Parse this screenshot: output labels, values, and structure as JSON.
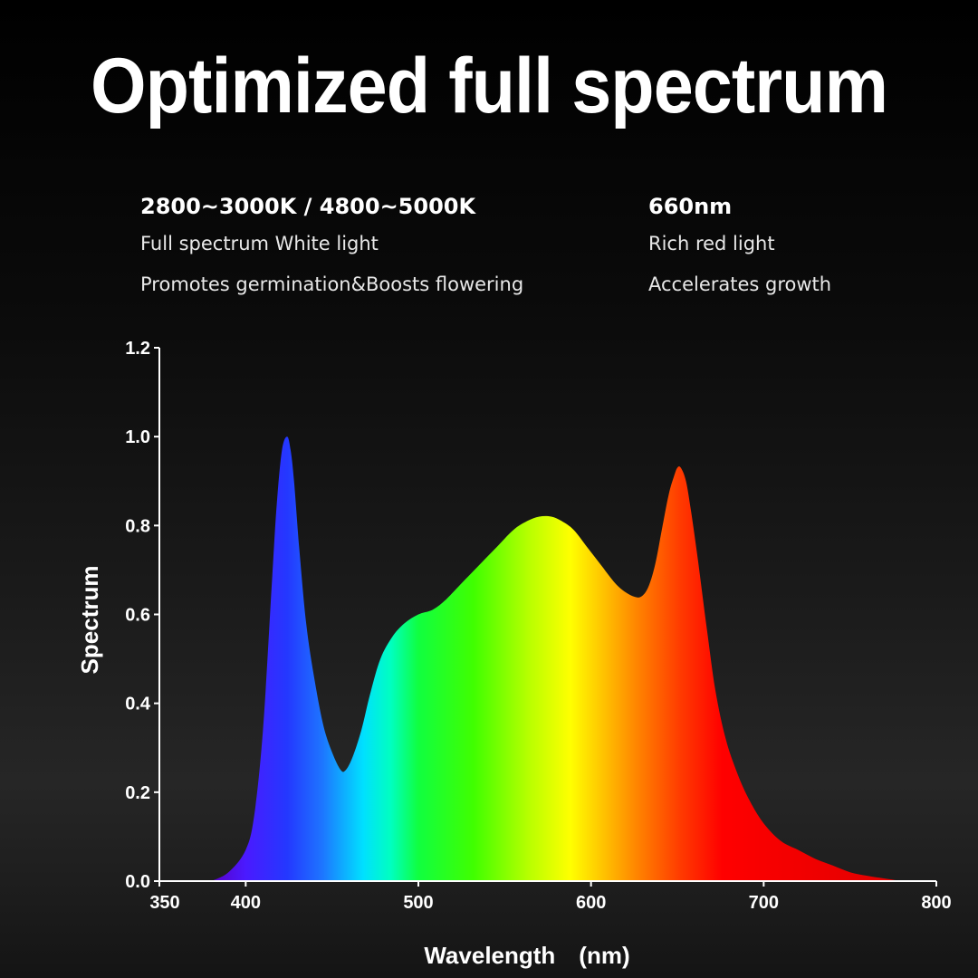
{
  "headline": "Optimized full spectrum",
  "info": {
    "left": {
      "title": "2800~3000K / 4800~5000K",
      "line1": "Full spectrum White light",
      "line2": "Promotes germination&Boosts flowering"
    },
    "right": {
      "title": "660nm",
      "line1": "Rich red light",
      "line2": "Accelerates growth"
    }
  },
  "chart_data": {
    "type": "area",
    "title": "",
    "xlabel": "Wavelength　(nm)",
    "ylabel": "Spectrum",
    "xlim": [
      350,
      800
    ],
    "ylim": [
      0,
      1.2
    ],
    "xticks": [
      "350",
      "400",
      "500",
      "600",
      "700",
      "800"
    ],
    "xtick_values": [
      350,
      400,
      500,
      600,
      700,
      800
    ],
    "yticks": [
      "0.0",
      "0.2",
      "0.4",
      "0.6",
      "0.8",
      "1.0",
      "1.2"
    ],
    "ytick_values": [
      0,
      0.2,
      0.4,
      0.6,
      0.8,
      1.0,
      1.2
    ],
    "grid": false,
    "fill": "visible-spectrum rainbow gradient",
    "x": [
      380,
      390,
      400,
      405,
      410,
      415,
      418,
      421,
      424,
      426,
      428,
      431,
      435,
      440,
      445,
      450,
      455,
      458,
      462,
      467,
      472,
      478,
      485,
      492,
      500,
      508,
      515,
      525,
      535,
      545,
      555,
      563,
      570,
      577,
      583,
      590,
      598,
      606,
      614,
      620,
      625,
      629,
      633,
      637,
      641,
      645,
      648,
      650,
      652,
      655,
      658,
      662,
      667,
      672,
      678,
      685,
      692,
      700,
      710,
      720,
      730,
      740,
      750,
      760,
      770,
      780
    ],
    "y": [
      0.0,
      0.02,
      0.07,
      0.15,
      0.34,
      0.66,
      0.85,
      0.97,
      1.0,
      0.97,
      0.9,
      0.75,
      0.58,
      0.45,
      0.35,
      0.29,
      0.25,
      0.25,
      0.28,
      0.34,
      0.42,
      0.5,
      0.55,
      0.58,
      0.6,
      0.61,
      0.63,
      0.67,
      0.71,
      0.75,
      0.79,
      0.81,
      0.82,
      0.82,
      0.81,
      0.79,
      0.75,
      0.71,
      0.67,
      0.65,
      0.64,
      0.64,
      0.66,
      0.71,
      0.79,
      0.87,
      0.91,
      0.93,
      0.93,
      0.9,
      0.83,
      0.72,
      0.57,
      0.43,
      0.32,
      0.24,
      0.18,
      0.13,
      0.09,
      0.07,
      0.05,
      0.035,
      0.02,
      0.012,
      0.006,
      0.0
    ]
  }
}
